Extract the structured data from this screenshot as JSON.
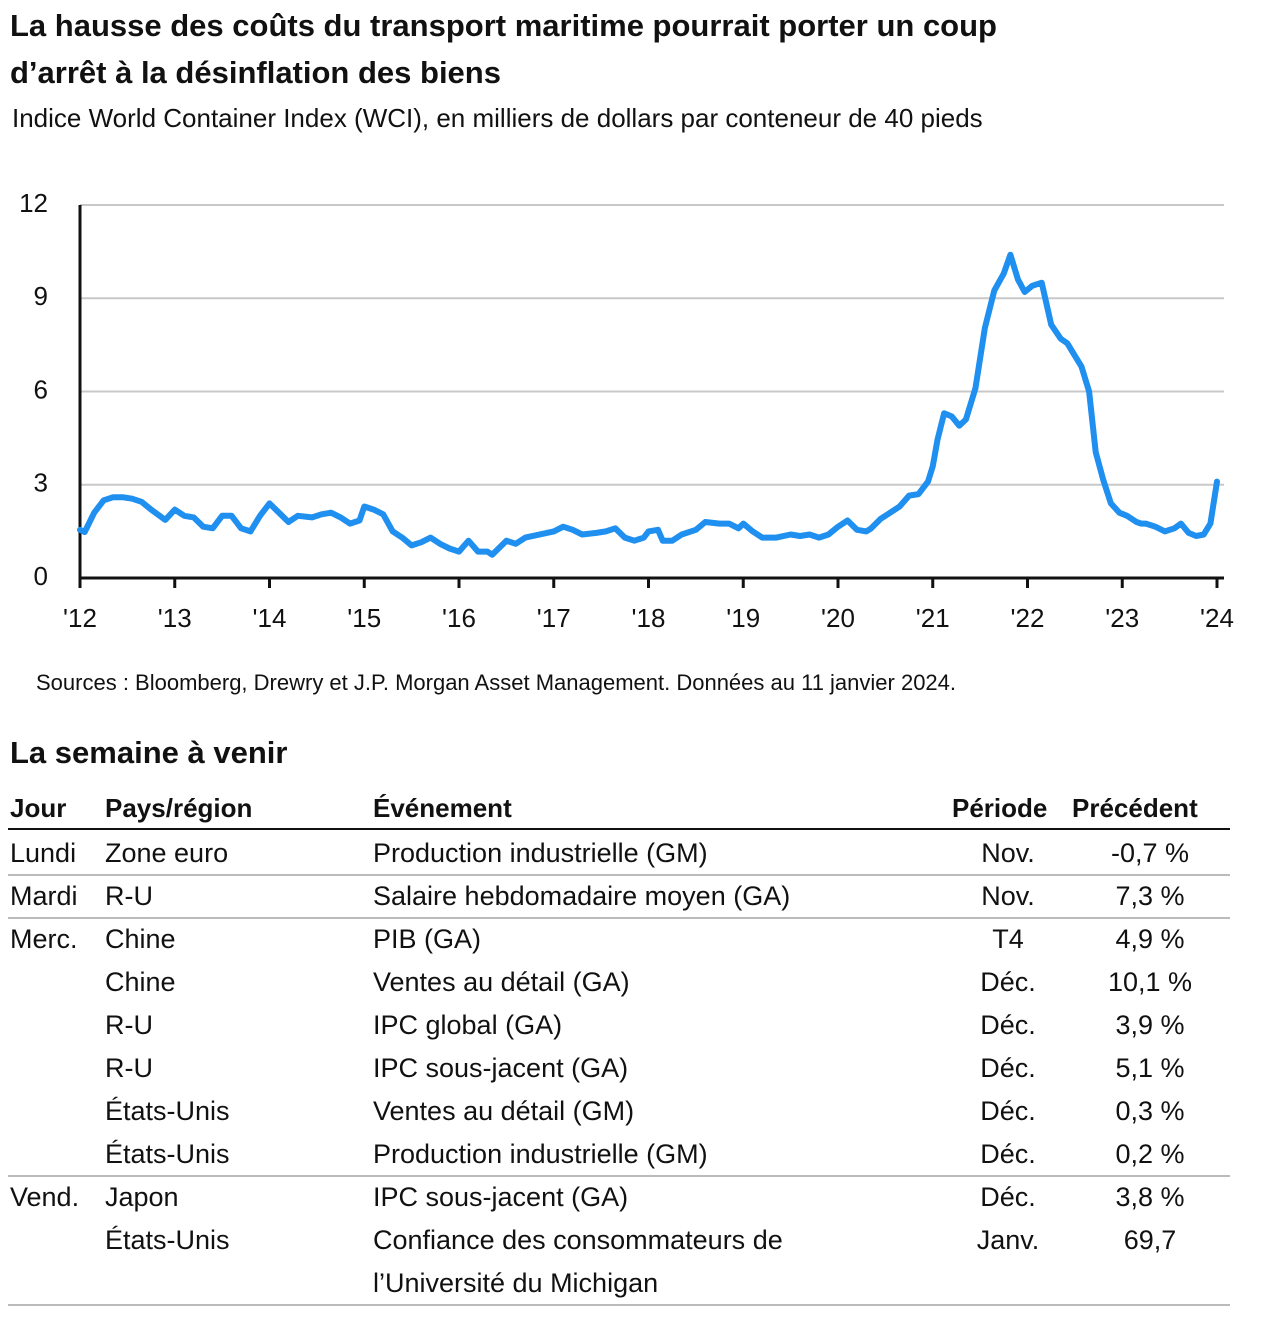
{
  "chart_data": {
    "type": "line",
    "title": [
      "La hausse des coûts du transport maritime pourrait porter un coup",
      "d’arrêt à la désinflation des biens"
    ],
    "subtitle": "Indice World Container Index (WCI), en milliers de dollars par conteneur de 40 pieds",
    "source": "Sources : Bloomberg, Drewry et J.P. Morgan Asset Management. Données au 11 janvier 2024.",
    "color": "#1f8ff0",
    "x": [
      2012.0,
      2012.05,
      2012.15,
      2012.25,
      2012.35,
      2012.45,
      2012.55,
      2012.65,
      2012.75,
      2012.9,
      2013.0,
      2013.1,
      2013.2,
      2013.3,
      2013.4,
      2013.5,
      2013.6,
      2013.7,
      2013.8,
      2013.9,
      2014.0,
      2014.1,
      2014.2,
      2014.3,
      2014.45,
      2014.55,
      2014.65,
      2014.75,
      2014.85,
      2014.95,
      2015.0,
      2015.1,
      2015.2,
      2015.3,
      2015.4,
      2015.5,
      2015.6,
      2015.7,
      2015.8,
      2015.9,
      2016.0,
      2016.1,
      2016.2,
      2016.3,
      2016.35,
      2016.5,
      2016.6,
      2016.7,
      2017.0,
      2017.1,
      2017.2,
      2017.3,
      2017.45,
      2017.55,
      2017.65,
      2017.75,
      2017.85,
      2017.95,
      2018.0,
      2018.1,
      2018.15,
      2018.25,
      2018.35,
      2018.5,
      2018.6,
      2018.75,
      2018.85,
      2018.95,
      2019.0,
      2019.1,
      2019.2,
      2019.35,
      2019.5,
      2019.6,
      2019.7,
      2019.8,
      2019.9,
      2020.0,
      2020.1,
      2020.2,
      2020.3,
      2020.35,
      2020.45,
      2020.55,
      2020.65,
      2020.75,
      2020.85,
      2020.95,
      2021.0,
      2021.05,
      2021.12,
      2021.2,
      2021.28,
      2021.35,
      2021.45,
      2021.55,
      2021.65,
      2021.75,
      2021.82,
      2021.9,
      2021.97,
      2022.05,
      2022.15,
      2022.25,
      2022.35,
      2022.42,
      2022.5,
      2022.57,
      2022.65,
      2022.72,
      2022.8,
      2022.88,
      2022.97,
      2023.05,
      2023.15,
      2023.2,
      2023.25,
      2023.35,
      2023.45,
      2023.55,
      2023.62,
      2023.7,
      2023.78,
      2023.86,
      2023.93,
      2024.0
    ],
    "values": [
      1.55,
      1.48,
      2.1,
      2.5,
      2.6,
      2.6,
      2.55,
      2.45,
      2.2,
      1.87,
      2.2,
      2.0,
      1.95,
      1.65,
      1.6,
      2.0,
      2.0,
      1.6,
      1.5,
      2.0,
      2.4,
      2.1,
      1.8,
      2.0,
      1.95,
      2.05,
      2.1,
      1.95,
      1.75,
      1.85,
      2.3,
      2.2,
      2.05,
      1.5,
      1.3,
      1.05,
      1.15,
      1.3,
      1.1,
      0.95,
      0.85,
      1.2,
      0.85,
      0.85,
      0.75,
      1.2,
      1.1,
      1.3,
      1.5,
      1.65,
      1.55,
      1.4,
      1.45,
      1.5,
      1.6,
      1.3,
      1.2,
      1.3,
      1.5,
      1.55,
      1.2,
      1.2,
      1.4,
      1.55,
      1.8,
      1.75,
      1.75,
      1.6,
      1.75,
      1.5,
      1.3,
      1.3,
      1.4,
      1.35,
      1.4,
      1.3,
      1.4,
      1.65,
      1.85,
      1.55,
      1.5,
      1.6,
      1.9,
      2.1,
      2.3,
      2.65,
      2.7,
      3.1,
      3.6,
      4.45,
      5.3,
      5.2,
      4.9,
      5.1,
      6.1,
      8.05,
      9.25,
      9.8,
      10.4,
      9.6,
      9.2,
      9.4,
      9.5,
      8.15,
      7.7,
      7.55,
      7.15,
      6.8,
      6.0,
      4.05,
      3.15,
      2.4,
      2.1,
      2.0,
      1.8,
      1.75,
      1.75,
      1.65,
      1.5,
      1.6,
      1.75,
      1.45,
      1.35,
      1.4,
      1.75,
      3.1
    ],
    "xlim": [
      2012,
      2024
    ],
    "xticks": [
      {
        "value": 2012,
        "label": "'12"
      },
      {
        "value": 2013,
        "label": "'13"
      },
      {
        "value": 2014,
        "label": "'14"
      },
      {
        "value": 2015,
        "label": "'15"
      },
      {
        "value": 2016,
        "label": "'16"
      },
      {
        "value": 2017,
        "label": "'17"
      },
      {
        "value": 2018,
        "label": "'18"
      },
      {
        "value": 2019,
        "label": "'19"
      },
      {
        "value": 2020,
        "label": "'20"
      },
      {
        "value": 2021,
        "label": "'21"
      },
      {
        "value": 2022,
        "label": "'22"
      },
      {
        "value": 2023,
        "label": "'23"
      },
      {
        "value": 2024,
        "label": "'24"
      }
    ],
    "ylim": [
      0,
      12
    ],
    "yticks": [
      0,
      3,
      6,
      9,
      12
    ],
    "grid": true
  },
  "table": {
    "title": "La semaine à venir",
    "headers": [
      "Jour",
      "Pays/région",
      "Événement",
      "Période",
      "Précédent"
    ],
    "rows": [
      [
        "Lundi",
        "Zone euro",
        "Production industrielle (GM)",
        "Nov.",
        "-0,7 %"
      ],
      [
        "Mardi",
        "R-U",
        "Salaire hebdomadaire moyen (GA)",
        "Nov.",
        "7,3 %"
      ],
      [
        "Merc.",
        "Chine",
        "PIB (GA)",
        "T4",
        "4,9 %"
      ],
      [
        null,
        "Chine",
        "Ventes au détail (GA)",
        "Déc.",
        "10,1 %"
      ],
      [
        null,
        "R-U",
        "IPC global (GA)",
        "Déc.",
        "3,9 %"
      ],
      [
        null,
        "R-U",
        "IPC sous-jacent (GA)",
        "Déc.",
        "5,1 %"
      ],
      [
        null,
        "États-Unis",
        "Ventes au détail (GM)",
        "Déc.",
        "0,3 %"
      ],
      [
        null,
        "États-Unis",
        "Production industrielle (GM)",
        "Déc.",
        "0,2 %"
      ],
      [
        "Vend.",
        "Japon",
        "IPC sous-jacent (GA)",
        "Déc.",
        "3,8 %"
      ],
      [
        null,
        "États-Unis",
        [
          "Confiance des consommateurs de",
          "l’Université du Michigan"
        ],
        "Janv.",
        "69,7"
      ]
    ]
  }
}
